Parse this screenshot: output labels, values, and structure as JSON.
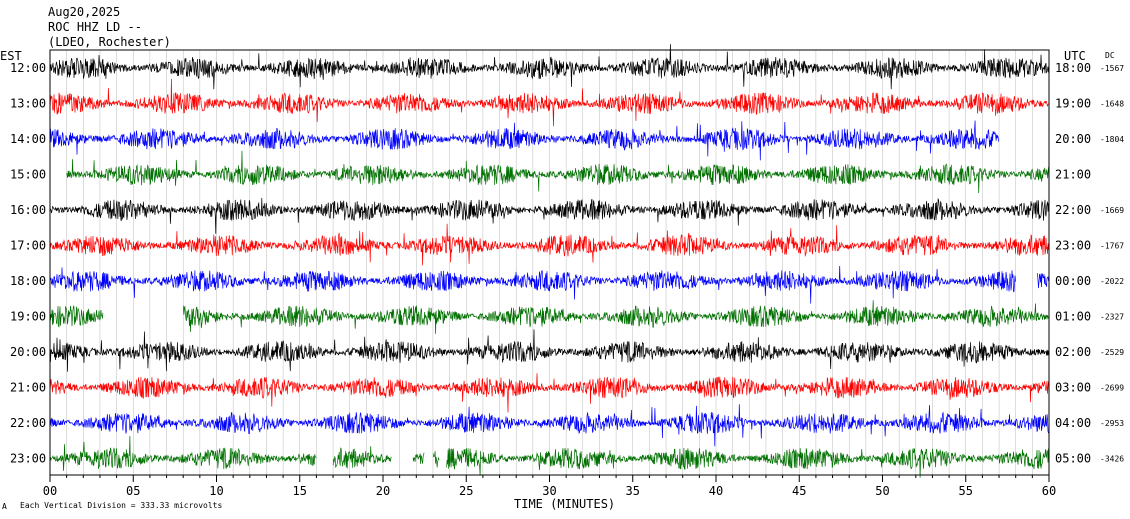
{
  "header": {
    "date": "Aug20,2025",
    "station": "ROC HHZ LD --",
    "network": "(LDEO, Rochester)"
  },
  "labels": {
    "left_tz": "EST",
    "right_tz": "UTC",
    "dc": "DC",
    "xlabel": "TIME (MINUTES)",
    "footer": "Each Vertical Division =  333.33 microvolts",
    "corner": "A"
  },
  "colors": {
    "trace_cycle": [
      "#000000",
      "#ff0000",
      "#0000ff",
      "#007000"
    ],
    "frame": "#000000"
  },
  "chart_data": {
    "type": "line",
    "title": "",
    "xlabel": "TIME (MINUTES)",
    "xlim": [
      0,
      60
    ],
    "x_ticks": [
      "00",
      "05",
      "10",
      "15",
      "20",
      "25",
      "30",
      "35",
      "40",
      "45",
      "50",
      "55",
      "60"
    ],
    "grid": "vertical lines every minute",
    "rows": [
      {
        "est": "12:00",
        "utc": "18:00",
        "dc": "-1567",
        "color": "#000000",
        "start_min": 0,
        "end_min": 60
      },
      {
        "est": "13:00",
        "utc": "19:00",
        "dc": "-1648",
        "color": "#ff0000",
        "start_min": 0,
        "end_min": 60
      },
      {
        "est": "14:00",
        "utc": "20:00",
        "dc": "-1804",
        "color": "#0000ff",
        "start_min": 0,
        "end_min": 57
      },
      {
        "est": "15:00",
        "utc": "21:00",
        "dc": "",
        "color": "#007000",
        "start_min": 1,
        "end_min": 60
      },
      {
        "est": "16:00",
        "utc": "22:00",
        "dc": "-1669",
        "color": "#000000",
        "start_min": 0,
        "end_min": 60
      },
      {
        "est": "17:00",
        "utc": "23:00",
        "dc": "-1767",
        "color": "#ff0000",
        "start_min": 0,
        "end_min": 60
      },
      {
        "est": "18:00",
        "utc": "00:00",
        "dc": "-2022",
        "color": "#0000ff",
        "start_min": 0,
        "end_min": 60
      },
      {
        "est": "19:00",
        "utc": "01:00",
        "dc": "-2327",
        "color": "#007000",
        "start_min": 0,
        "end_min": 60
      },
      {
        "est": "20:00",
        "utc": "02:00",
        "dc": "-2529",
        "color": "#000000",
        "start_min": 0,
        "end_min": 60
      },
      {
        "est": "21:00",
        "utc": "03:00",
        "dc": "-2699",
        "color": "#ff0000",
        "start_min": 0,
        "end_min": 60
      },
      {
        "est": "22:00",
        "utc": "04:00",
        "dc": "-2953",
        "color": "#0000ff",
        "start_min": 0,
        "end_min": 60
      },
      {
        "est": "23:00",
        "utc": "05:00",
        "dc": "-3426",
        "color": "#007000",
        "start_min": 0,
        "end_min": 60
      }
    ],
    "gaps_min": {
      "2": [
        [
          57,
          60
        ]
      ],
      "6": [
        [
          58,
          59.3
        ]
      ],
      "7": [
        [
          3.2,
          8
        ]
      ],
      "11": [
        [
          16,
          17
        ],
        [
          20.5,
          21.8
        ],
        [
          22.5,
          23
        ],
        [
          23.4,
          23.8
        ]
      ]
    }
  }
}
